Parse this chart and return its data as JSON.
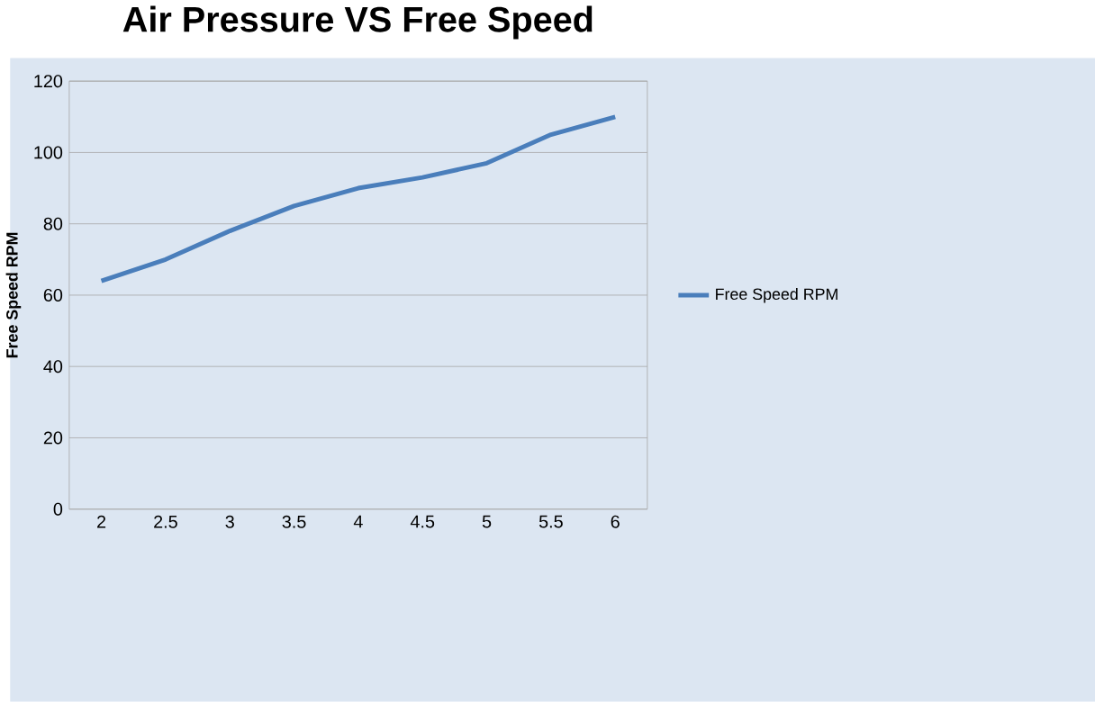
{
  "chart_data": {
    "type": "line",
    "title": "Air Pressure VS Free Speed",
    "ylabel": "Free Speed RPM",
    "categories": [
      "2",
      "2.5",
      "3",
      "3.5",
      "4",
      "4.5",
      "5",
      "5.5",
      "6"
    ],
    "series": [
      {
        "name": "Free Speed RPM",
        "color": "#4a7ebb",
        "values": [
          64,
          70,
          78,
          85,
          90,
          93,
          97,
          105,
          110
        ]
      }
    ],
    "ylim": [
      0,
      120
    ],
    "yticks": [
      0,
      20,
      40,
      60,
      80,
      100,
      120
    ],
    "grid": "y",
    "legend": "right",
    "marker": "none",
    "line_style": "solid"
  }
}
